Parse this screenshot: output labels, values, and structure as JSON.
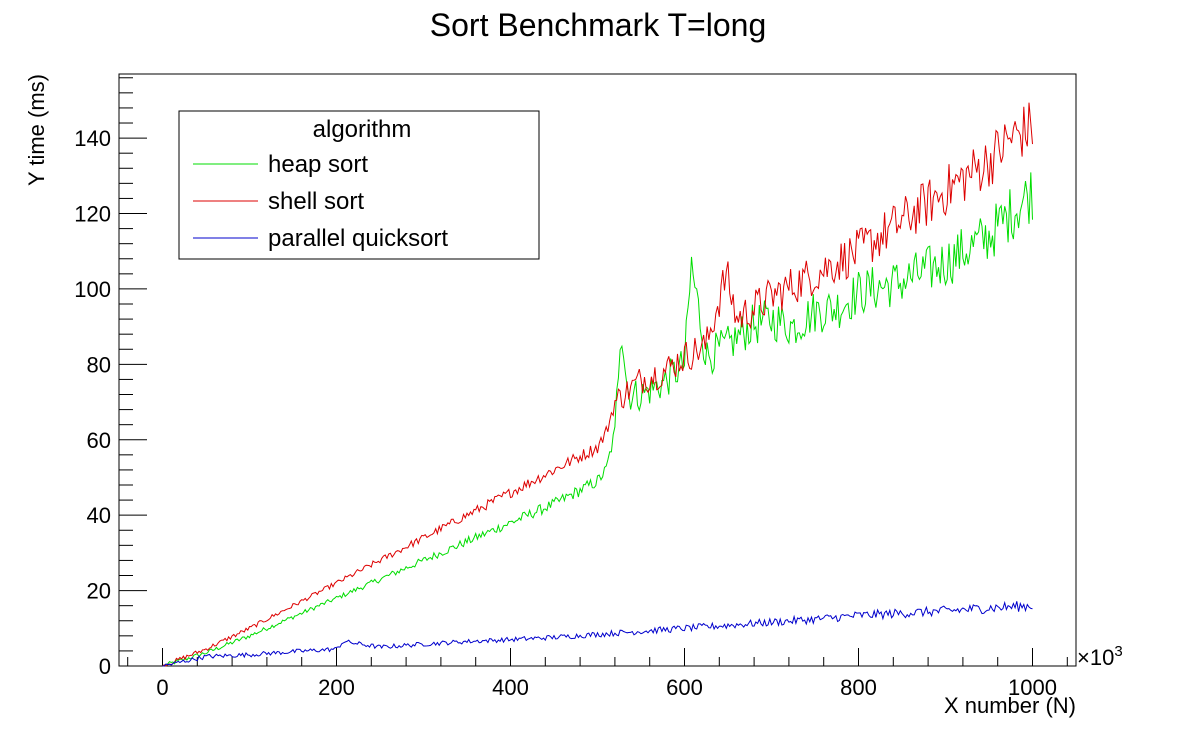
{
  "chart_data": {
    "type": "line",
    "title": "Sort Benchmark T=long",
    "xlabel": "X number (N)",
    "ylabel": "Y time (ms)",
    "x_multiplier_label": "×10",
    "x_multiplier_exponent": "3",
    "xlim": [
      -50,
      1050
    ],
    "ylim": [
      0,
      157
    ],
    "x_ticks": [
      0,
      200,
      400,
      600,
      800,
      1000
    ],
    "x_tick_labels": [
      "0",
      "200",
      "400",
      "600",
      "800",
      "1000"
    ],
    "y_ticks": [
      0,
      20,
      40,
      60,
      80,
      100,
      120,
      140
    ],
    "y_tick_labels": [
      "0",
      "20",
      "40",
      "60",
      "80",
      "100",
      "120",
      "140"
    ],
    "grid": false,
    "legend_placement": "top-left",
    "legend_title": "algorithm",
    "series": [
      {
        "name": "heap sort",
        "color": "#00dd00",
        "points": [
          [
            0,
            0
          ],
          [
            50,
            3.5
          ],
          [
            100,
            8
          ],
          [
            150,
            13
          ],
          [
            200,
            18
          ],
          [
            250,
            23
          ],
          [
            300,
            28
          ],
          [
            350,
            33
          ],
          [
            400,
            38
          ],
          [
            450,
            43
          ],
          [
            500,
            49
          ],
          [
            510,
            52
          ],
          [
            520,
            62
          ],
          [
            527,
            92
          ],
          [
            535,
            72
          ],
          [
            550,
            72
          ],
          [
            575,
            75
          ],
          [
            600,
            80
          ],
          [
            608,
            106
          ],
          [
            625,
            82
          ],
          [
            650,
            85
          ],
          [
            675,
            90
          ],
          [
            700,
            92
          ],
          [
            725,
            90
          ],
          [
            750,
            94
          ],
          [
            775,
            95
          ],
          [
            800,
            99
          ],
          [
            850,
            102
          ],
          [
            900,
            107
          ],
          [
            950,
            114
          ],
          [
            975,
            120
          ],
          [
            1000,
            126
          ]
        ]
      },
      {
        "name": "shell sort",
        "color": "#dd0000",
        "points": [
          [
            0,
            0
          ],
          [
            50,
            4.5
          ],
          [
            100,
            10
          ],
          [
            150,
            16
          ],
          [
            200,
            22
          ],
          [
            250,
            28
          ],
          [
            300,
            34
          ],
          [
            350,
            40
          ],
          [
            400,
            46
          ],
          [
            450,
            52
          ],
          [
            500,
            58
          ],
          [
            510,
            62
          ],
          [
            520,
            70
          ],
          [
            550,
            76
          ],
          [
            575,
            78
          ],
          [
            600,
            82
          ],
          [
            625,
            85
          ],
          [
            648,
            104
          ],
          [
            660,
            92
          ],
          [
            700,
            98
          ],
          [
            750,
            104
          ],
          [
            800,
            110
          ],
          [
            850,
            118
          ],
          [
            900,
            126
          ],
          [
            950,
            134
          ],
          [
            975,
            140
          ],
          [
            1000,
            143
          ]
        ]
      },
      {
        "name": "parallel quicksort",
        "color": "#0000cc",
        "points": [
          [
            0,
            0
          ],
          [
            50,
            2.5
          ],
          [
            100,
            3
          ],
          [
            150,
            3.8
          ],
          [
            200,
            4.5
          ],
          [
            208,
            6.5
          ],
          [
            250,
            5
          ],
          [
            300,
            5.8
          ],
          [
            350,
            6.5
          ],
          [
            400,
            7
          ],
          [
            450,
            7.6
          ],
          [
            500,
            8.4
          ],
          [
            550,
            9.2
          ],
          [
            600,
            10
          ],
          [
            650,
            10.8
          ],
          [
            700,
            11.6
          ],
          [
            750,
            12.4
          ],
          [
            800,
            13.4
          ],
          [
            850,
            14
          ],
          [
            900,
            14.6
          ],
          [
            950,
            15.4
          ],
          [
            1000,
            16
          ]
        ]
      }
    ]
  }
}
